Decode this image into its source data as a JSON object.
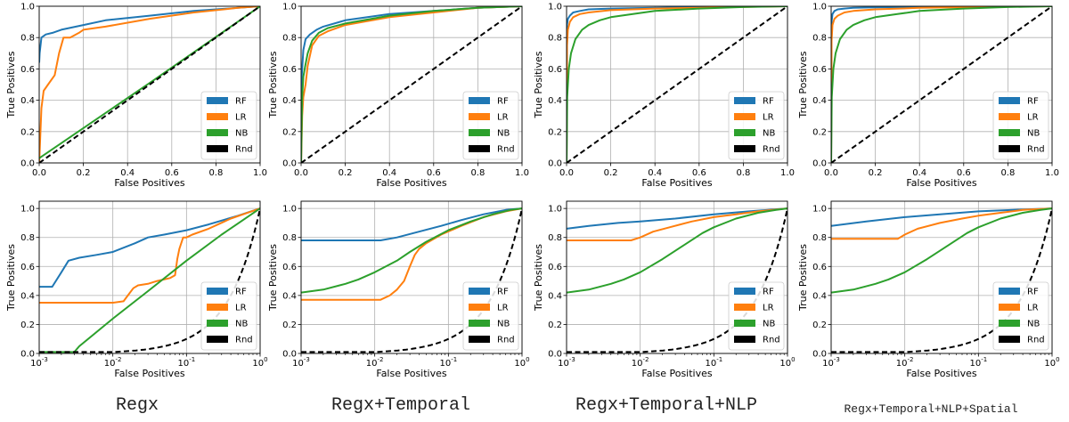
{
  "column_labels": [
    "Regx",
    "Regx+Temporal",
    "Regx+Temporal+NLP",
    "Regx+Temporal+NLP+Spatial"
  ],
  "colors": {
    "RF": "#1f77b4",
    "LR": "#ff7f0e",
    "NB": "#2ca02c",
    "Rnd": "#000000"
  },
  "legend": [
    "RF",
    "LR",
    "NB",
    "Rnd"
  ],
  "chart_data": [
    {
      "type": "line",
      "panel": "row1-col1",
      "xscale": "linear",
      "xlabel": "False Positives",
      "ylabel": "True Positives",
      "xlim": [
        0,
        1
      ],
      "ylim": [
        0,
        1
      ],
      "xticks": [
        "0.0",
        "0.2",
        "0.4",
        "0.6",
        "0.8",
        "1.0"
      ],
      "yticks": [
        "0.0",
        "0.2",
        "0.4",
        "0.6",
        "0.8",
        "1.0"
      ],
      "grid": true,
      "legend_position": "lower-right",
      "series": [
        {
          "name": "RF",
          "x": [
            0,
            0.002,
            0.01,
            0.03,
            0.06,
            0.1,
            0.2,
            0.3,
            0.5,
            0.7,
            0.9,
            1
          ],
          "y": [
            0.64,
            0.7,
            0.8,
            0.82,
            0.83,
            0.85,
            0.88,
            0.91,
            0.94,
            0.97,
            0.99,
            1
          ]
        },
        {
          "name": "LR",
          "x": [
            0,
            0.01,
            0.02,
            0.04,
            0.07,
            0.09,
            0.11,
            0.14,
            0.18,
            0.2,
            0.3,
            0.5,
            0.7,
            0.9,
            1
          ],
          "y": [
            0,
            0.35,
            0.46,
            0.5,
            0.56,
            0.7,
            0.8,
            0.8,
            0.83,
            0.85,
            0.87,
            0.92,
            0.96,
            0.99,
            1
          ]
        },
        {
          "name": "NB",
          "x": [
            0,
            0.5,
            1
          ],
          "y": [
            0.03,
            0.51,
            1
          ]
        },
        {
          "name": "Rnd",
          "x": [
            0,
            1
          ],
          "y": [
            0,
            1
          ]
        }
      ]
    },
    {
      "type": "line",
      "panel": "row1-col2",
      "xscale": "linear",
      "xlabel": "False Positives",
      "ylabel": "True Positives",
      "xlim": [
        0,
        1
      ],
      "ylim": [
        0,
        1
      ],
      "xticks": [
        "0.0",
        "0.2",
        "0.4",
        "0.6",
        "0.8",
        "1.0"
      ],
      "yticks": [
        "0.0",
        "0.2",
        "0.4",
        "0.6",
        "0.8",
        "1.0"
      ],
      "grid": true,
      "legend_position": "lower-right",
      "series": [
        {
          "name": "RF",
          "x": [
            0,
            0.003,
            0.01,
            0.02,
            0.04,
            0.07,
            0.1,
            0.2,
            0.4,
            0.6,
            0.8,
            1
          ],
          "y": [
            0,
            0.55,
            0.72,
            0.79,
            0.82,
            0.85,
            0.87,
            0.91,
            0.95,
            0.97,
            0.99,
            1
          ]
        },
        {
          "name": "LR",
          "x": [
            0,
            0.005,
            0.01,
            0.02,
            0.03,
            0.05,
            0.08,
            0.12,
            0.2,
            0.4,
            0.6,
            0.8,
            1
          ],
          "y": [
            0,
            0.3,
            0.42,
            0.5,
            0.62,
            0.75,
            0.81,
            0.84,
            0.88,
            0.93,
            0.96,
            0.99,
            1
          ]
        },
        {
          "name": "NB",
          "x": [
            0,
            0.005,
            0.01,
            0.02,
            0.03,
            0.05,
            0.08,
            0.12,
            0.2,
            0.4,
            0.6,
            0.8,
            1
          ],
          "y": [
            0,
            0.42,
            0.55,
            0.63,
            0.7,
            0.78,
            0.83,
            0.86,
            0.89,
            0.94,
            0.97,
            0.99,
            1
          ]
        },
        {
          "name": "Rnd",
          "x": [
            0,
            1
          ],
          "y": [
            0,
            1
          ]
        }
      ]
    },
    {
      "type": "line",
      "panel": "row1-col3",
      "xscale": "linear",
      "xlabel": "False Positives",
      "ylabel": "True Positives",
      "xlim": [
        0,
        1
      ],
      "ylim": [
        0,
        1
      ],
      "xticks": [
        "0.0",
        "0.2",
        "0.4",
        "0.6",
        "0.8",
        "1.0"
      ],
      "yticks": [
        "0.0",
        "0.2",
        "0.4",
        "0.6",
        "0.8",
        "1.0"
      ],
      "grid": true,
      "legend_position": "lower-right",
      "series": [
        {
          "name": "RF",
          "x": [
            0,
            0.002,
            0.006,
            0.015,
            0.03,
            0.06,
            0.1,
            0.2,
            0.4,
            0.6,
            0.8,
            1
          ],
          "y": [
            0,
            0.88,
            0.92,
            0.94,
            0.96,
            0.97,
            0.98,
            0.985,
            0.99,
            0.995,
            0.998,
            1
          ]
        },
        {
          "name": "LR",
          "x": [
            0,
            0.002,
            0.006,
            0.015,
            0.03,
            0.06,
            0.1,
            0.2,
            0.4,
            0.6,
            0.8,
            1
          ],
          "y": [
            0,
            0.75,
            0.85,
            0.9,
            0.93,
            0.95,
            0.96,
            0.975,
            0.985,
            0.99,
            0.996,
            1
          ]
        },
        {
          "name": "NB",
          "x": [
            0,
            0.003,
            0.01,
            0.02,
            0.04,
            0.07,
            0.1,
            0.15,
            0.2,
            0.3,
            0.4,
            0.6,
            0.8,
            1
          ],
          "y": [
            0,
            0.42,
            0.6,
            0.7,
            0.79,
            0.85,
            0.88,
            0.91,
            0.93,
            0.95,
            0.97,
            0.985,
            0.995,
            1
          ]
        },
        {
          "name": "Rnd",
          "x": [
            0,
            1
          ],
          "y": [
            0,
            1
          ]
        }
      ]
    },
    {
      "type": "line",
      "panel": "row1-col4",
      "xscale": "linear",
      "xlabel": "False Positives",
      "ylabel": "True Positives",
      "xlim": [
        0,
        1
      ],
      "ylim": [
        0,
        1
      ],
      "xticks": [
        "0.0",
        "0.2",
        "0.4",
        "0.6",
        "0.8",
        "1.0"
      ],
      "yticks": [
        "0.0",
        "0.2",
        "0.4",
        "0.6",
        "0.8",
        "1.0"
      ],
      "grid": true,
      "legend_position": "lower-right",
      "series": [
        {
          "name": "RF",
          "x": [
            0,
            0.002,
            0.006,
            0.015,
            0.03,
            0.06,
            0.1,
            0.2,
            0.5,
            1
          ],
          "y": [
            0,
            0.9,
            0.95,
            0.97,
            0.98,
            0.985,
            0.99,
            0.993,
            0.997,
            1
          ]
        },
        {
          "name": "LR",
          "x": [
            0,
            0.002,
            0.006,
            0.015,
            0.03,
            0.06,
            0.1,
            0.2,
            0.4,
            0.7,
            1
          ],
          "y": [
            0,
            0.78,
            0.88,
            0.92,
            0.94,
            0.96,
            0.97,
            0.98,
            0.99,
            0.996,
            1
          ]
        },
        {
          "name": "NB",
          "x": [
            0,
            0.003,
            0.01,
            0.02,
            0.04,
            0.07,
            0.1,
            0.15,
            0.2,
            0.3,
            0.4,
            0.6,
            0.8,
            1
          ],
          "y": [
            0,
            0.42,
            0.6,
            0.7,
            0.79,
            0.85,
            0.88,
            0.91,
            0.93,
            0.95,
            0.97,
            0.985,
            0.995,
            1
          ]
        },
        {
          "name": "Rnd",
          "x": [
            0,
            1
          ],
          "y": [
            0,
            1
          ]
        }
      ]
    },
    {
      "type": "line",
      "panel": "row2-col1",
      "xscale": "log",
      "xlabel": "False Positives",
      "ylabel": "True Positives",
      "xlim": [
        0.001,
        1
      ],
      "ylim": [
        0,
        1.05
      ],
      "xticks": [
        0.001,
        0.01,
        0.1,
        1
      ],
      "yticks": [
        "0.0",
        "0.2",
        "0.4",
        "0.6",
        "0.8",
        "1.0"
      ],
      "grid": true,
      "legend_position": "lower-right",
      "series": [
        {
          "name": "RF",
          "x": [
            0.001,
            0.0015,
            0.002,
            0.0025,
            0.0035,
            0.006,
            0.01,
            0.02,
            0.03,
            0.05,
            0.1,
            0.2,
            0.5,
            1
          ],
          "y": [
            0.46,
            0.46,
            0.56,
            0.64,
            0.66,
            0.68,
            0.7,
            0.76,
            0.8,
            0.82,
            0.85,
            0.89,
            0.95,
            1
          ]
        },
        {
          "name": "LR",
          "x": [
            0.001,
            0.01,
            0.014,
            0.016,
            0.019,
            0.022,
            0.03,
            0.04,
            0.06,
            0.07,
            0.075,
            0.08,
            0.09,
            0.1,
            0.12,
            0.2,
            0.4,
            1
          ],
          "y": [
            0.35,
            0.35,
            0.36,
            0.4,
            0.45,
            0.47,
            0.48,
            0.5,
            0.52,
            0.54,
            0.65,
            0.72,
            0.8,
            0.8,
            0.82,
            0.86,
            0.93,
            1
          ]
        },
        {
          "name": "NB",
          "x": [
            0.001,
            0.003,
            0.0035,
            0.01,
            0.03,
            0.1,
            0.3,
            1
          ],
          "y": [
            0.01,
            0.01,
            0.05,
            0.24,
            0.43,
            0.64,
            0.82,
            1
          ]
        },
        {
          "name": "Rnd",
          "x": [
            0.001,
            0.01,
            0.05,
            0.1,
            0.2,
            0.3,
            0.5,
            0.7,
            0.85,
            1
          ],
          "y": [
            0.01,
            0.01,
            0.05,
            0.1,
            0.2,
            0.3,
            0.5,
            0.7,
            0.85,
            1
          ]
        }
      ]
    },
    {
      "type": "line",
      "panel": "row2-col2",
      "xscale": "log",
      "xlabel": "False Positives",
      "ylabel": "True Positives",
      "xlim": [
        0.001,
        1
      ],
      "ylim": [
        0,
        1.05
      ],
      "xticks": [
        0.001,
        0.01,
        0.1,
        1
      ],
      "yticks": [
        "0.0",
        "0.2",
        "0.4",
        "0.6",
        "0.8",
        "1.0"
      ],
      "grid": true,
      "legend_position": "lower-right",
      "series": [
        {
          "name": "RF",
          "x": [
            0.001,
            0.012,
            0.02,
            0.04,
            0.08,
            0.15,
            0.3,
            0.6,
            1
          ],
          "y": [
            0.78,
            0.78,
            0.8,
            0.84,
            0.88,
            0.92,
            0.96,
            0.99,
            1
          ]
        },
        {
          "name": "LR",
          "x": [
            0.001,
            0.012,
            0.016,
            0.02,
            0.025,
            0.03,
            0.035,
            0.04,
            0.05,
            0.08,
            0.15,
            0.3,
            0.6,
            1
          ],
          "y": [
            0.37,
            0.37,
            0.4,
            0.44,
            0.5,
            0.6,
            0.68,
            0.72,
            0.76,
            0.82,
            0.88,
            0.94,
            0.98,
            1
          ]
        },
        {
          "name": "NB",
          "x": [
            0.001,
            0.002,
            0.004,
            0.006,
            0.01,
            0.02,
            0.03,
            0.05,
            0.1,
            0.2,
            0.4,
            0.7,
            1
          ],
          "y": [
            0.42,
            0.44,
            0.48,
            0.51,
            0.56,
            0.64,
            0.7,
            0.77,
            0.85,
            0.91,
            0.96,
            0.99,
            1
          ]
        },
        {
          "name": "Rnd",
          "x": [
            0.001,
            0.01,
            0.05,
            0.1,
            0.2,
            0.3,
            0.5,
            0.7,
            0.85,
            1
          ],
          "y": [
            0.01,
            0.01,
            0.05,
            0.1,
            0.2,
            0.3,
            0.5,
            0.7,
            0.85,
            1
          ]
        }
      ]
    },
    {
      "type": "line",
      "panel": "row2-col3",
      "xscale": "log",
      "xlabel": "False Positives",
      "ylabel": "True Positives",
      "xlim": [
        0.001,
        1
      ],
      "ylim": [
        0,
        1.05
      ],
      "xticks": [
        0.001,
        0.01,
        0.1,
        1
      ],
      "yticks": [
        "0.0",
        "0.2",
        "0.4",
        "0.6",
        "0.8",
        "1.0"
      ],
      "grid": true,
      "legend_position": "lower-right",
      "series": [
        {
          "name": "RF",
          "x": [
            0.001,
            0.002,
            0.005,
            0.01,
            0.03,
            0.1,
            0.3,
            1
          ],
          "y": [
            0.86,
            0.88,
            0.9,
            0.91,
            0.93,
            0.96,
            0.98,
            1
          ]
        },
        {
          "name": "LR",
          "x": [
            0.001,
            0.0075,
            0.01,
            0.015,
            0.025,
            0.05,
            0.1,
            0.2,
            0.4,
            1
          ],
          "y": [
            0.78,
            0.78,
            0.8,
            0.84,
            0.87,
            0.91,
            0.94,
            0.96,
            0.98,
            1
          ]
        },
        {
          "name": "NB",
          "x": [
            0.001,
            0.002,
            0.004,
            0.006,
            0.01,
            0.02,
            0.04,
            0.07,
            0.1,
            0.2,
            0.4,
            0.7,
            1
          ],
          "y": [
            0.42,
            0.44,
            0.48,
            0.51,
            0.56,
            0.65,
            0.75,
            0.83,
            0.87,
            0.93,
            0.97,
            0.99,
            1
          ]
        },
        {
          "name": "Rnd",
          "x": [
            0.001,
            0.01,
            0.05,
            0.1,
            0.2,
            0.3,
            0.5,
            0.7,
            0.85,
            1
          ],
          "y": [
            0.01,
            0.01,
            0.05,
            0.1,
            0.2,
            0.3,
            0.5,
            0.7,
            0.85,
            1
          ]
        }
      ]
    },
    {
      "type": "line",
      "panel": "row2-col4",
      "xscale": "log",
      "xlabel": "False Positives",
      "ylabel": "True Positives",
      "xlim": [
        0.001,
        1
      ],
      "ylim": [
        0,
        1.05
      ],
      "xticks": [
        0.001,
        0.01,
        0.1,
        1
      ],
      "yticks": [
        "0.0",
        "0.2",
        "0.4",
        "0.6",
        "0.8",
        "1.0"
      ],
      "grid": true,
      "legend_position": "lower-right",
      "series": [
        {
          "name": "RF",
          "x": [
            0.001,
            0.003,
            0.01,
            0.03,
            0.1,
            0.3,
            1
          ],
          "y": [
            0.88,
            0.91,
            0.94,
            0.96,
            0.98,
            0.99,
            1
          ]
        },
        {
          "name": "LR",
          "x": [
            0.001,
            0.008,
            0.01,
            0.015,
            0.03,
            0.06,
            0.1,
            0.2,
            0.4,
            1
          ],
          "y": [
            0.79,
            0.79,
            0.82,
            0.86,
            0.9,
            0.93,
            0.95,
            0.97,
            0.99,
            1
          ]
        },
        {
          "name": "NB",
          "x": [
            0.001,
            0.002,
            0.004,
            0.006,
            0.01,
            0.02,
            0.04,
            0.07,
            0.1,
            0.2,
            0.4,
            0.7,
            1
          ],
          "y": [
            0.42,
            0.44,
            0.48,
            0.51,
            0.56,
            0.65,
            0.75,
            0.83,
            0.87,
            0.93,
            0.97,
            0.99,
            1
          ]
        },
        {
          "name": "Rnd",
          "x": [
            0.001,
            0.01,
            0.05,
            0.1,
            0.2,
            0.3,
            0.5,
            0.7,
            0.85,
            1
          ],
          "y": [
            0.01,
            0.01,
            0.05,
            0.1,
            0.2,
            0.3,
            0.5,
            0.7,
            0.85,
            1
          ]
        }
      ]
    }
  ]
}
